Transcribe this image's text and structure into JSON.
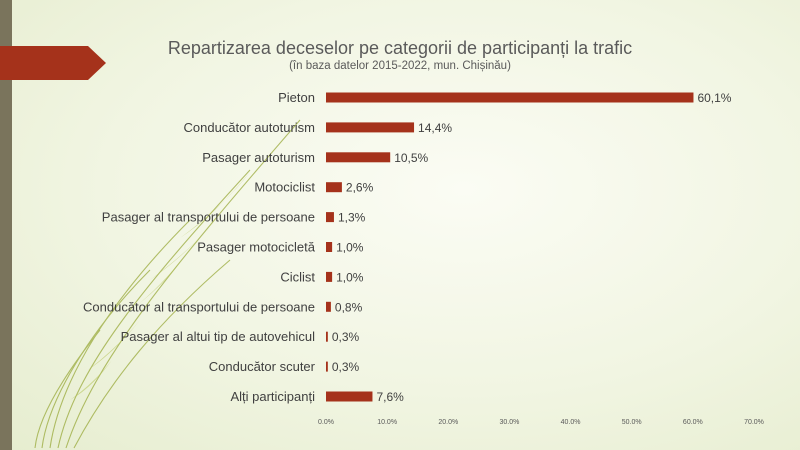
{
  "chart_data": {
    "type": "bar",
    "orientation": "horizontal",
    "title": "Repartizarea deceselor pe categorii de participanți la trafic",
    "subtitle": "(în baza datelor 2015-2022, mun. Chișinău)",
    "categories": [
      "Pieton",
      "Conducător autoturism",
      "Pasager autoturism",
      "Motociclist",
      "Pasager al transportului de persoane",
      "Pasager motocicletă",
      "Ciclist",
      "Conducător al transportului de persoane",
      "Pasager al altui tip de autovehicul",
      "Conducător scuter",
      "Alți participanți"
    ],
    "values": [
      60.1,
      14.4,
      10.5,
      2.6,
      1.3,
      1.0,
      1.0,
      0.8,
      0.3,
      0.3,
      7.6
    ],
    "value_labels": [
      "60,1%",
      "14,4%",
      "10,5%",
      "2,6%",
      "1,3%",
      "1,0%",
      "1,0%",
      "0,8%",
      "0,3%",
      "0,3%",
      "7,6%"
    ],
    "xlim": [
      0,
      70
    ],
    "x_ticks": [
      "0.0%",
      "10.0%",
      "20.0%",
      "30.0%",
      "40.0%",
      "50.0%",
      "60.0%",
      "70.0%"
    ],
    "bar_color": "#a5321b",
    "grid": false,
    "legend": false
  },
  "theme": {
    "accent_arrow_color": "#a5321b",
    "side_bar_color": "#7a745c",
    "leaf_color": "#9aaa3c"
  }
}
